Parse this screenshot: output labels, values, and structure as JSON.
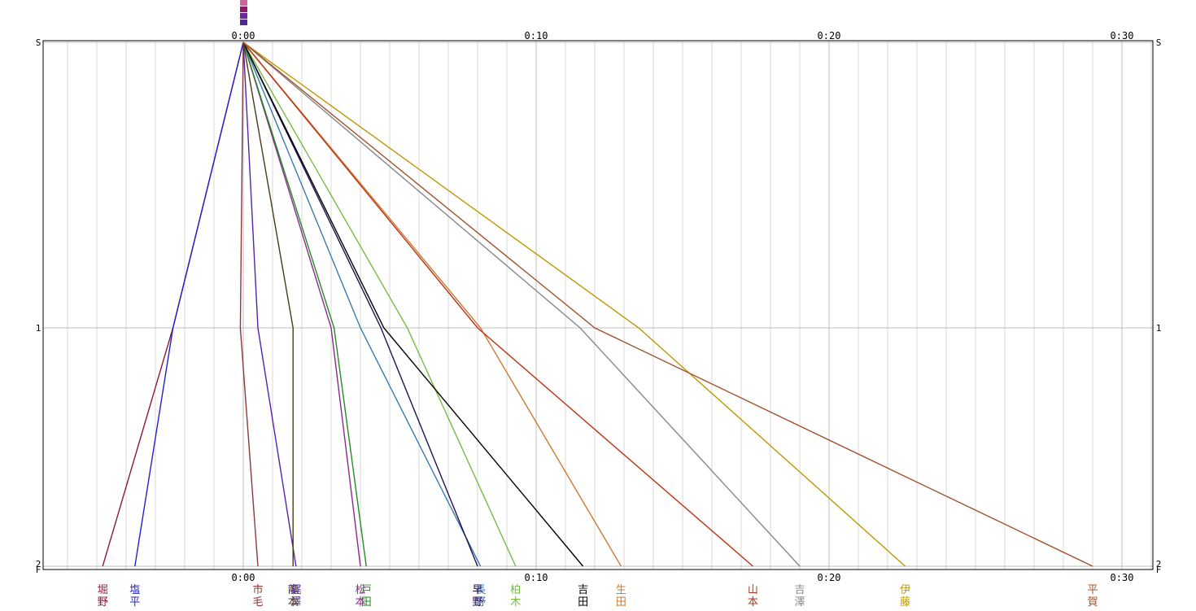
{
  "chart_data": {
    "type": "line",
    "title": "",
    "xlabel": "",
    "ylabel": "",
    "x_unit": "minutes",
    "xlim": [
      -6.8,
      31.1
    ],
    "time_ticks": [
      {
        "t": 0,
        "label": "0:00"
      },
      {
        "t": 10,
        "label": "0:10"
      },
      {
        "t": 20,
        "label": "0:20"
      },
      {
        "t": 30,
        "label": "0:30"
      }
    ],
    "y_stations": [
      {
        "pos": 0,
        "label": "S"
      },
      {
        "pos": 1,
        "label": "1"
      },
      {
        "pos": 1.83,
        "label": "2"
      },
      {
        "pos": 1.83,
        "label": "F"
      }
    ],
    "grid": true,
    "series": [
      {
        "label": "堀野",
        "color": "#8b1a3a",
        "points": [
          [
            0,
            0
          ],
          [
            -2.4,
            1
          ],
          [
            -4.8,
            1.83
          ]
        ]
      },
      {
        "label": "塩平",
        "color": "#2222cc",
        "points": [
          [
            0,
            0
          ],
          [
            -2.4,
            1
          ],
          [
            -3.7,
            1.83
          ]
        ]
      },
      {
        "label": "市毛",
        "color": "#8b3a3a",
        "points": [
          [
            0,
            0
          ],
          [
            -0.1,
            1
          ],
          [
            0.5,
            1.83
          ]
        ]
      },
      {
        "label": "梶澤",
        "color": "#5522aa",
        "points": [
          [
            0,
            0
          ],
          [
            0.5,
            1
          ],
          [
            1.8,
            1.83
          ]
        ]
      },
      {
        "label": "龍本",
        "color": "#4a3a1a",
        "points": [
          [
            0,
            0
          ],
          [
            1.7,
            1
          ],
          [
            1.7,
            1.83
          ]
        ]
      },
      {
        "label": "松本",
        "color": "#8b2a8b",
        "points": [
          [
            0,
            0
          ],
          [
            3.0,
            1
          ],
          [
            4.0,
            1.83
          ]
        ]
      },
      {
        "label": "戸田",
        "color": "#228b22",
        "points": [
          [
            0,
            0
          ],
          [
            3.1,
            1
          ],
          [
            4.2,
            1.83
          ]
        ]
      },
      {
        "label": "長野",
        "color": "#3a7ab0",
        "points": [
          [
            0,
            0
          ],
          [
            4.0,
            1
          ],
          [
            8.1,
            1.83
          ]
        ]
      },
      {
        "label": "早野",
        "color": "#221155",
        "points": [
          [
            0,
            0
          ],
          [
            4.7,
            1
          ],
          [
            8.0,
            1.83
          ]
        ]
      },
      {
        "label": "柏木",
        "color": "#77bb44",
        "points": [
          [
            0,
            0
          ],
          [
            5.6,
            1
          ],
          [
            9.3,
            1.83
          ]
        ]
      },
      {
        "label": "吉田",
        "color": "#000000",
        "points": [
          [
            0,
            0
          ],
          [
            4.8,
            1
          ],
          [
            11.6,
            1.83
          ]
        ]
      },
      {
        "label": "生田",
        "color": "#cc7a33",
        "points": [
          [
            0,
            0
          ],
          [
            8.1,
            1
          ],
          [
            12.9,
            1.83
          ]
        ]
      },
      {
        "label": "山本",
        "color": "#bb3311",
        "points": [
          [
            0,
            0
          ],
          [
            8.0,
            1
          ],
          [
            17.4,
            1.83
          ]
        ]
      },
      {
        "label": "吉澤",
        "color": "#888888",
        "points": [
          [
            0,
            0
          ],
          [
            11.5,
            1
          ],
          [
            19.0,
            1.83
          ]
        ]
      },
      {
        "label": "伊藤",
        "color": "#bb9900",
        "points": [
          [
            0,
            0
          ],
          [
            13.5,
            1
          ],
          [
            22.6,
            1.83
          ]
        ]
      },
      {
        "label": "平賀",
        "color": "#a0522d",
        "points": [
          [
            0,
            0
          ],
          [
            12.0,
            1
          ],
          [
            29.0,
            1.83
          ]
        ]
      }
    ]
  }
}
